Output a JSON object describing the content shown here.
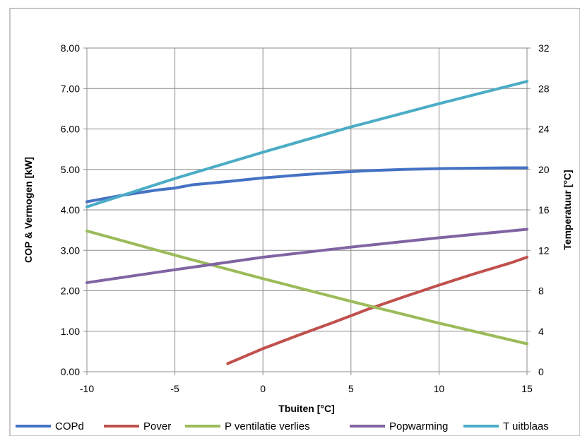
{
  "chart_data": {
    "type": "line",
    "title": "",
    "xlabel": "Tbuiten [°C]",
    "ylabel": "COP & Vermogen [kW]",
    "y2label": "Temperatuur [°C]",
    "xlim": [
      -10,
      15
    ],
    "ylim": [
      0,
      8
    ],
    "y2lim": [
      0,
      32
    ],
    "x_ticks": [
      "-10",
      "-5",
      "0",
      "5",
      "10",
      "15"
    ],
    "y_ticks": [
      "0.00",
      "1.00",
      "2.00",
      "3.00",
      "4.00",
      "5.00",
      "6.00",
      "7.00",
      "8.00"
    ],
    "y2_ticks": [
      "0",
      "4",
      "8",
      "12",
      "16",
      "20",
      "24",
      "28",
      "32"
    ],
    "grid": true,
    "legend_position": "bottom",
    "series": [
      {
        "name": "COPd",
        "color": "#4472C4",
        "axis": "left",
        "x": [
          -10,
          -8,
          -6,
          -5,
          -4,
          -2,
          0,
          2,
          4,
          6,
          8,
          10,
          12,
          14,
          15
        ],
        "y": [
          4.2,
          4.36,
          4.49,
          4.54,
          4.62,
          4.7,
          4.79,
          4.86,
          4.92,
          4.97,
          5.0,
          5.02,
          5.03,
          5.04,
          5.04
        ]
      },
      {
        "name": "Pover",
        "color": "#C0504D",
        "axis": "left",
        "x": [
          -2,
          0,
          2,
          4,
          6,
          8,
          10,
          12,
          14,
          15
        ],
        "y": [
          0.2,
          0.57,
          0.9,
          1.22,
          1.55,
          1.85,
          2.14,
          2.42,
          2.68,
          2.83
        ]
      },
      {
        "name": "P ventilatie verlies",
        "color": "#9BBB59",
        "axis": "left",
        "x": [
          -10,
          -5,
          0,
          5,
          10,
          15
        ],
        "y": [
          3.48,
          2.88,
          2.3,
          1.74,
          1.2,
          0.69
        ]
      },
      {
        "name": "Popwarming",
        "color": "#8064A2",
        "axis": "left",
        "x": [
          -10,
          -5,
          0,
          5,
          10,
          15
        ],
        "y": [
          2.2,
          2.52,
          2.83,
          3.08,
          3.31,
          3.52
        ]
      },
      {
        "name": "T uitblaas",
        "color": "#4BACC6",
        "axis": "right",
        "x": [
          -10,
          -5,
          0,
          5,
          10,
          15
        ],
        "y": [
          16.3,
          19.1,
          21.7,
          24.2,
          26.5,
          28.7
        ]
      }
    ]
  }
}
